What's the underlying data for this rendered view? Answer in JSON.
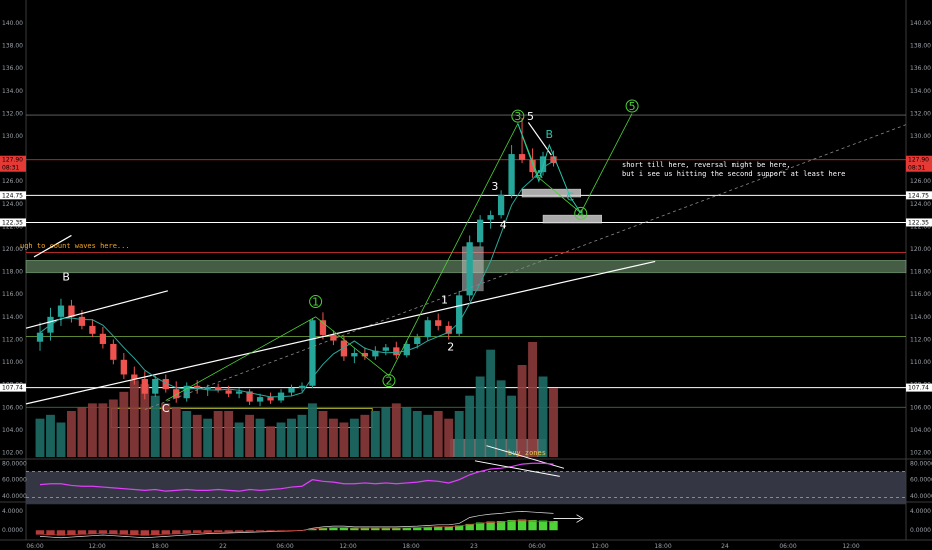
{
  "chart_data": {
    "type": "candlestick",
    "y_ticks": [
      "140.00",
      "138.00",
      "136.00",
      "134.00",
      "132.00",
      "130.00",
      "128.00",
      "126.00",
      "124.00",
      "122.00",
      "120.00",
      "118.00",
      "116.00",
      "114.00",
      "112.00",
      "110.00",
      "108.00",
      "106.00",
      "104.00",
      "102.00"
    ],
    "ylim": [
      101.6,
      141.5
    ],
    "x_ticks": [
      "06:00",
      "12:00",
      "18:00",
      "22",
      "06:00",
      "12:00",
      "18:00",
      "23",
      "06:00",
      "12:00",
      "18:00",
      "24",
      "06:00",
      "12:00"
    ],
    "price_badges": [
      {
        "value": 127.9,
        "label": "127.90",
        "sublabel": "08:31",
        "color": "#e53935"
      },
      {
        "value": 124.75,
        "label": "124.75",
        "color": "#ffffff"
      },
      {
        "value": 122.35,
        "label": "122.35",
        "color": "#ffffff"
      },
      {
        "value": 107.74,
        "label": "107.74",
        "color": "#ffffff"
      }
    ],
    "candles": [
      {
        "o": 111.8,
        "h": 113.5,
        "l": 111.0,
        "c": 112.6
      },
      {
        "o": 112.6,
        "h": 114.8,
        "l": 111.9,
        "c": 114.0
      },
      {
        "o": 114.0,
        "h": 115.6,
        "l": 113.2,
        "c": 115.0
      },
      {
        "o": 115.0,
        "h": 115.5,
        "l": 113.5,
        "c": 114.0
      },
      {
        "o": 114.0,
        "h": 114.6,
        "l": 112.9,
        "c": 113.2
      },
      {
        "o": 113.2,
        "h": 113.8,
        "l": 112.2,
        "c": 112.5
      },
      {
        "o": 112.5,
        "h": 113.1,
        "l": 111.2,
        "c": 111.6
      },
      {
        "o": 111.6,
        "h": 112.0,
        "l": 109.8,
        "c": 110.2
      },
      {
        "o": 110.2,
        "h": 110.8,
        "l": 108.5,
        "c": 108.9
      },
      {
        "o": 108.9,
        "h": 109.6,
        "l": 108.0,
        "c": 108.5
      },
      {
        "o": 108.5,
        "h": 109.2,
        "l": 106.7,
        "c": 107.2
      },
      {
        "o": 107.2,
        "h": 108.8,
        "l": 106.9,
        "c": 108.5
      },
      {
        "o": 108.5,
        "h": 108.9,
        "l": 107.3,
        "c": 107.6
      },
      {
        "o": 107.6,
        "h": 108.3,
        "l": 106.4,
        "c": 106.8
      },
      {
        "o": 106.8,
        "h": 108.2,
        "l": 106.5,
        "c": 107.9
      },
      {
        "o": 107.9,
        "h": 108.4,
        "l": 107.2,
        "c": 107.6
      },
      {
        "o": 107.6,
        "h": 108.0,
        "l": 107.0,
        "c": 107.8
      },
      {
        "o": 107.8,
        "h": 108.1,
        "l": 107.3,
        "c": 107.5
      },
      {
        "o": 107.5,
        "h": 107.9,
        "l": 106.9,
        "c": 107.2
      },
      {
        "o": 107.2,
        "h": 107.7,
        "l": 106.8,
        "c": 107.4
      },
      {
        "o": 107.4,
        "h": 107.6,
        "l": 106.2,
        "c": 106.5
      },
      {
        "o": 106.5,
        "h": 107.2,
        "l": 106.1,
        "c": 106.9
      },
      {
        "o": 106.9,
        "h": 107.3,
        "l": 106.3,
        "c": 106.6
      },
      {
        "o": 106.6,
        "h": 107.6,
        "l": 106.4,
        "c": 107.3
      },
      {
        "o": 107.3,
        "h": 108.0,
        "l": 107.0,
        "c": 107.7
      },
      {
        "o": 107.7,
        "h": 108.2,
        "l": 107.4,
        "c": 107.9
      },
      {
        "o": 107.9,
        "h": 113.9,
        "l": 107.7,
        "c": 113.7
      },
      {
        "o": 113.7,
        "h": 114.4,
        "l": 112.0,
        "c": 112.4
      },
      {
        "o": 112.4,
        "h": 112.8,
        "l": 111.5,
        "c": 111.9
      },
      {
        "o": 111.9,
        "h": 112.3,
        "l": 110.1,
        "c": 110.5
      },
      {
        "o": 110.5,
        "h": 111.2,
        "l": 109.9,
        "c": 110.8
      },
      {
        "o": 110.8,
        "h": 111.3,
        "l": 110.2,
        "c": 110.5
      },
      {
        "o": 110.5,
        "h": 111.4,
        "l": 110.2,
        "c": 111.0
      },
      {
        "o": 111.0,
        "h": 111.6,
        "l": 110.6,
        "c": 111.3
      },
      {
        "o": 111.3,
        "h": 111.8,
        "l": 110.3,
        "c": 110.6
      },
      {
        "o": 110.6,
        "h": 111.9,
        "l": 110.4,
        "c": 111.6
      },
      {
        "o": 111.6,
        "h": 112.5,
        "l": 111.2,
        "c": 112.2
      },
      {
        "o": 112.2,
        "h": 114.0,
        "l": 111.9,
        "c": 113.7
      },
      {
        "o": 113.7,
        "h": 114.3,
        "l": 112.8,
        "c": 113.2
      },
      {
        "o": 113.2,
        "h": 113.6,
        "l": 112.0,
        "c": 112.5
      },
      {
        "o": 112.5,
        "h": 116.3,
        "l": 112.3,
        "c": 115.9
      },
      {
        "o": 115.9,
        "h": 121.2,
        "l": 115.4,
        "c": 120.6
      },
      {
        "o": 120.6,
        "h": 123.0,
        "l": 120.1,
        "c": 122.6
      },
      {
        "o": 122.6,
        "h": 123.4,
        "l": 121.8,
        "c": 123.0
      },
      {
        "o": 123.0,
        "h": 125.2,
        "l": 122.7,
        "c": 124.8
      },
      {
        "o": 124.8,
        "h": 129.2,
        "l": 124.5,
        "c": 128.4
      },
      {
        "o": 128.4,
        "h": 131.6,
        "l": 127.6,
        "c": 127.9
      },
      {
        "o": 127.9,
        "h": 128.9,
        "l": 126.3,
        "c": 126.8
      },
      {
        "o": 126.8,
        "h": 128.6,
        "l": 126.5,
        "c": 128.2
      },
      {
        "o": 128.2,
        "h": 128.7,
        "l": 127.3,
        "c": 127.6
      }
    ],
    "volumes": [
      10,
      11,
      9,
      12,
      13,
      14,
      14,
      15,
      17,
      20,
      19,
      16,
      14,
      13,
      12,
      11,
      10,
      12,
      12,
      9,
      11,
      10,
      8,
      9,
      10,
      11,
      14,
      12,
      10,
      9,
      10,
      11,
      12,
      13,
      14,
      13,
      12,
      11,
      12,
      10,
      12,
      16,
      21,
      28,
      20,
      16,
      24,
      30,
      21,
      18
    ],
    "rsi": {
      "levels": [
        "80.0000",
        "60.0000",
        "40.0000"
      ],
      "ylim": [
        34,
        84
      ],
      "values": [
        54,
        55,
        55,
        53,
        52,
        52,
        51,
        50,
        49,
        48,
        47,
        48,
        46,
        47,
        48,
        47,
        47,
        48,
        47,
        46,
        48,
        47,
        48,
        49,
        51,
        52,
        60,
        58,
        57,
        55,
        55,
        56,
        55,
        56,
        55,
        56,
        57,
        59,
        58,
        56,
        60,
        66,
        70,
        73,
        74,
        76,
        79,
        80,
        80,
        79
      ]
    },
    "macd": {
      "levels": [
        "4.0000",
        "0.0000"
      ],
      "ylim": [
        -1.8,
        5.6
      ],
      "hist": [
        -0.9,
        -1.0,
        -1.1,
        -1.0,
        -0.9,
        -0.8,
        -0.7,
        -0.8,
        -0.9,
        -1.0,
        -1.1,
        -1.0,
        -0.9,
        -0.8,
        -0.7,
        -0.6,
        -0.5,
        -0.45,
        -0.4,
        -0.35,
        -0.3,
        -0.25,
        -0.2,
        -0.15,
        -0.1,
        -0.05,
        0.3,
        0.5,
        0.6,
        0.6,
        0.5,
        0.5,
        0.5,
        0.5,
        0.5,
        0.55,
        0.6,
        0.7,
        0.8,
        0.8,
        1.0,
        1.3,
        1.6,
        1.8,
        1.9,
        2.1,
        2.2,
        2.1,
        2.0,
        1.9
      ]
    },
    "wave_labels": [
      {
        "text": "B",
        "color": "#ffffff",
        "style": "plain",
        "i": 2.5,
        "price": 117.2
      },
      {
        "text": "C",
        "color": "#ffffff",
        "style": "plain",
        "i": 12.0,
        "price": 105.6
      },
      {
        "text": "1",
        "color": "#4cd137",
        "style": "circle",
        "i": 26.3,
        "price": 115.0
      },
      {
        "text": "2",
        "color": "#4cd137",
        "style": "circle",
        "i": 33.3,
        "price": 108.0
      },
      {
        "text": "1",
        "color": "#ffffff",
        "style": "plain",
        "i": 38.6,
        "price": 115.2
      },
      {
        "text": "2",
        "color": "#ffffff",
        "style": "plain",
        "i": 39.2,
        "price": 111.0
      },
      {
        "text": "3",
        "color": "#ffffff",
        "style": "plain",
        "i": 43.4,
        "price": 125.2
      },
      {
        "text": "4",
        "color": "#ffffff",
        "style": "plain",
        "i": 44.2,
        "price": 121.8
      },
      {
        "text": "3",
        "color": "#4cd137",
        "style": "circle",
        "i": 45.6,
        "price": 131.4
      },
      {
        "text": "5",
        "color": "#ffffff",
        "style": "plain",
        "i": 46.8,
        "price": 131.4
      },
      {
        "text": "A",
        "color": "#26c6a9",
        "style": "plain",
        "i": 47.6,
        "price": 126.3
      },
      {
        "text": "B",
        "color": "#26c6a9",
        "style": "plain",
        "i": 48.6,
        "price": 129.8
      },
      {
        "text": "C",
        "color": "#26c6a9",
        "style": "plain",
        "i": 50.6,
        "price": 124.3
      },
      {
        "text": "4",
        "color": "#4cd137",
        "style": "circle",
        "i": 51.6,
        "price": 122.8
      },
      {
        "text": "5",
        "color": "#4cd137",
        "style": "circle",
        "i": 56.5,
        "price": 132.3
      }
    ],
    "annotations": {
      "note_lines": [
        "short till here, reversal might be here,",
        "but i see us hitting the second support at least here"
      ],
      "left_note": "ugh to count waves here...",
      "buy_zones": "buy zones"
    },
    "colors": {
      "up": "#26a69a",
      "down": "#ef5350",
      "wave_green": "#4cd137",
      "teal": "#26c6a9",
      "rsi": "#e040fb",
      "note_orange": "#f5a623",
      "note_yellow": "#e6c84a",
      "red_line": "#e53935",
      "olive": "#7cb342"
    }
  }
}
